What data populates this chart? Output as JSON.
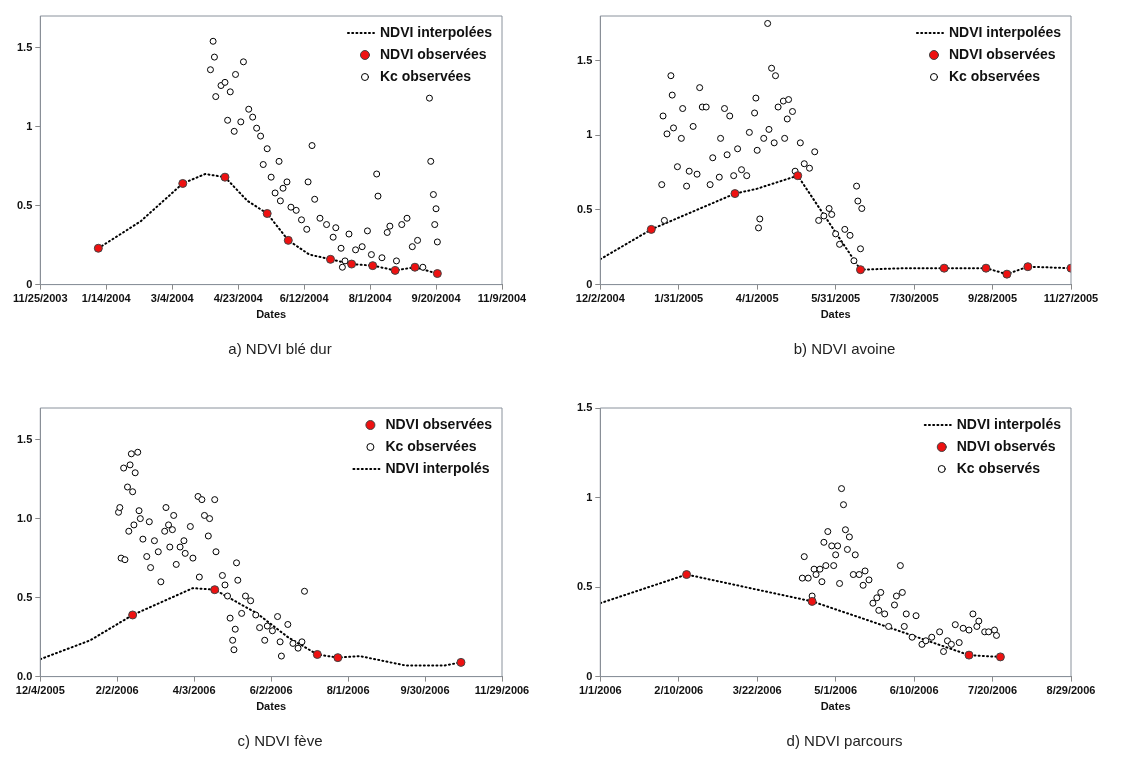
{
  "chart_data": [
    {
      "type": "scatter",
      "title": "a) NDVI blé dur",
      "xlabel": "Dates",
      "legend": "top right",
      "grid": false,
      "xlim": [
        "2003-11-25",
        "2004-11-09"
      ],
      "xticks": [
        {
          "value": "2003-11-25",
          "label": "11/25/2003"
        },
        {
          "value": "2004-01-14",
          "label": "1/14/2004"
        },
        {
          "value": "2004-03-04",
          "label": "3/4/2004"
        },
        {
          "value": "2004-04-23",
          "label": "4/23/2004"
        },
        {
          "value": "2004-06-12",
          "label": "6/12/2004"
        },
        {
          "value": "2004-08-01",
          "label": "8/1/2004"
        },
        {
          "value": "2004-09-20",
          "label": "9/20/2004"
        },
        {
          "value": "2004-11-09",
          "label": "11/9/2004"
        }
      ],
      "ylim": [
        0,
        1.7
      ],
      "yticks": [
        0,
        0.5,
        1,
        1.5
      ],
      "series": [
        {
          "name": "NDVI interpolées",
          "type": "line",
          "color": "#000000",
          "marker": "none",
          "line_style": "dotted",
          "x": [
            "2004-01-08",
            "2004-02-09",
            "2004-03-12",
            "2004-03-29",
            "2004-04-13",
            "2004-04-30",
            "2004-05-15",
            "2004-05-31",
            "2004-06-16",
            "2004-07-02",
            "2004-07-18",
            "2004-08-03",
            "2004-08-20",
            "2004-09-04",
            "2004-09-21"
          ],
          "values": [
            0.23,
            0.4,
            0.64,
            0.7,
            0.68,
            0.53,
            0.45,
            0.28,
            0.19,
            0.16,
            0.13,
            0.12,
            0.09,
            0.11,
            0.07
          ]
        },
        {
          "name": "NDVI observées",
          "type": "scatter",
          "color": "#ee1111",
          "marker": "circle",
          "x": [
            "2004-01-08",
            "2004-03-12",
            "2004-04-13",
            "2004-05-15",
            "2004-05-31",
            "2004-07-02",
            "2004-07-18",
            "2004-08-03",
            "2004-08-20",
            "2004-09-04",
            "2004-09-21"
          ],
          "values": [
            0.23,
            0.64,
            0.68,
            0.45,
            0.28,
            0.16,
            0.13,
            0.12,
            0.09,
            0.11,
            0.07
          ]
        },
        {
          "name": "Kc observées",
          "type": "scatter",
          "color": "#000000",
          "marker": "circle",
          "x": [
            "2004-04-02",
            "2004-04-04",
            "2004-04-05",
            "2004-04-06",
            "2004-04-10",
            "2004-04-13",
            "2004-04-15",
            "2004-04-17",
            "2004-04-20",
            "2004-04-21",
            "2004-04-25",
            "2004-04-27",
            "2004-05-01",
            "2004-05-04",
            "2004-05-07",
            "2004-05-10",
            "2004-05-12",
            "2004-05-15",
            "2004-05-18",
            "2004-05-21",
            "2004-05-24",
            "2004-05-27",
            "2004-05-30",
            "2004-06-02",
            "2004-06-06",
            "2004-06-10",
            "2004-06-14",
            "2004-06-15",
            "2004-06-18",
            "2004-06-20",
            "2004-06-24",
            "2004-06-29",
            "2004-07-04",
            "2004-07-10",
            "2004-07-11",
            "2004-07-16",
            "2004-07-21",
            "2004-07-26",
            "2004-07-30",
            "2004-08-02",
            "2004-08-06",
            "2004-08-07",
            "2004-08-10",
            "2004-08-14",
            "2004-08-16",
            "2004-08-21",
            "2004-08-25",
            "2004-08-29",
            "2004-09-02",
            "2004-09-06",
            "2004-09-10",
            "2004-09-15",
            "2004-09-16",
            "2004-09-18",
            "2004-09-19",
            "2004-09-20",
            "2004-09-21",
            "2004-05-25",
            "2004-07-06",
            "2004-07-13"
          ],
          "values": [
            1.36,
            1.54,
            1.44,
            1.19,
            1.26,
            1.28,
            1.04,
            1.22,
            0.97,
            1.33,
            1.03,
            1.41,
            1.11,
            1.06,
            0.99,
            0.94,
            0.76,
            0.86,
            0.68,
            0.58,
            0.78,
            0.61,
            0.65,
            0.49,
            0.47,
            0.41,
            0.35,
            0.65,
            0.88,
            0.54,
            0.42,
            0.38,
            0.3,
            0.23,
            0.11,
            0.32,
            0.22,
            0.24,
            0.34,
            0.19,
            0.7,
            0.56,
            0.17,
            0.33,
            0.37,
            0.15,
            0.38,
            0.42,
            0.24,
            0.28,
            0.11,
            1.18,
            0.78,
            0.57,
            0.38,
            0.48,
            0.27,
            0.53,
            0.36,
            0.15
          ]
        }
      ]
    },
    {
      "type": "scatter",
      "title": "b) NDVI avoine",
      "xlabel": "Dates",
      "legend": "top right",
      "grid": false,
      "xlim": [
        "2004-12-02",
        "2005-11-27"
      ],
      "xticks": [
        {
          "value": "2004-12-02",
          "label": "12/2/2004"
        },
        {
          "value": "2005-01-31",
          "label": "1/31/2005"
        },
        {
          "value": "2005-04-01",
          "label": "4/1/2005"
        },
        {
          "value": "2005-05-31",
          "label": "5/31/2005"
        },
        {
          "value": "2005-07-30",
          "label": "7/30/2005"
        },
        {
          "value": "2005-09-28",
          "label": "9/28/2005"
        },
        {
          "value": "2005-11-27",
          "label": "11/27/2005"
        }
      ],
      "ylim": [
        0,
        1.8
      ],
      "yticks": [
        0,
        0.5,
        1,
        1.5
      ],
      "series": [
        {
          "name": "NDVI interpolées",
          "type": "line",
          "color": "#000000",
          "marker": "none",
          "line_style": "dotted",
          "x": [
            "2004-12-02",
            "2005-01-10",
            "2005-03-15",
            "2005-03-31",
            "2005-05-02",
            "2005-06-19",
            "2005-07-23",
            "2005-08-22",
            "2005-09-23",
            "2005-10-09",
            "2005-10-25",
            "2005-11-27"
          ],
          "values": [
            0.17,
            0.37,
            0.61,
            0.64,
            0.73,
            0.1,
            0.11,
            0.11,
            0.11,
            0.07,
            0.12,
            0.11
          ]
        },
        {
          "name": "NDVI observées",
          "type": "scatter",
          "color": "#ee1111",
          "marker": "circle",
          "x": [
            "2005-01-10",
            "2005-03-15",
            "2005-05-02",
            "2005-06-19",
            "2005-08-22",
            "2005-09-23",
            "2005-10-09",
            "2005-10-25",
            "2005-11-27"
          ],
          "values": [
            0.37,
            0.61,
            0.73,
            0.1,
            0.11,
            0.11,
            0.07,
            0.12,
            0.11
          ]
        },
        {
          "name": "Kc observées",
          "type": "scatter",
          "color": "#000000",
          "marker": "circle",
          "x": [
            "2005-01-18",
            "2005-01-19",
            "2005-01-20",
            "2005-01-22",
            "2005-01-25",
            "2005-01-26",
            "2005-01-27",
            "2005-01-30",
            "2005-02-02",
            "2005-02-03",
            "2005-02-06",
            "2005-02-08",
            "2005-02-11",
            "2005-02-14",
            "2005-02-16",
            "2005-02-18",
            "2005-02-21",
            "2005-02-24",
            "2005-02-26",
            "2005-03-03",
            "2005-03-04",
            "2005-03-07",
            "2005-03-09",
            "2005-03-11",
            "2005-03-14",
            "2005-03-17",
            "2005-03-20",
            "2005-03-24",
            "2005-03-26",
            "2005-03-30",
            "2005-03-31",
            "2005-04-01",
            "2005-04-02",
            "2005-04-03",
            "2005-04-06",
            "2005-04-09",
            "2005-04-10",
            "2005-04-12",
            "2005-04-14",
            "2005-04-15",
            "2005-04-17",
            "2005-04-21",
            "2005-04-22",
            "2005-04-24",
            "2005-04-25",
            "2005-04-28",
            "2005-04-30",
            "2005-05-04",
            "2005-05-07",
            "2005-05-11",
            "2005-05-15",
            "2005-05-18",
            "2005-05-22",
            "2005-05-26",
            "2005-05-31",
            "2005-06-03",
            "2005-06-07",
            "2005-06-11",
            "2005-06-14",
            "2005-06-16",
            "2005-06-17",
            "2005-06-20",
            "2005-06-19",
            "2005-05-28"
          ],
          "values": [
            0.67,
            1.13,
            0.43,
            1.01,
            1.4,
            1.27,
            1.05,
            0.79,
            0.98,
            1.18,
            0.66,
            0.76,
            1.06,
            0.74,
            1.32,
            1.19,
            1.19,
            0.67,
            0.85,
            0.72,
            0.98,
            1.18,
            0.87,
            1.13,
            0.73,
            0.91,
            0.77,
            0.73,
            1.02,
            1.15,
            1.25,
            0.9,
            0.38,
            0.44,
            0.98,
            1.75,
            1.04,
            1.45,
            0.95,
            1.4,
            1.19,
            1.23,
            0.98,
            1.11,
            1.24,
            1.16,
            0.76,
            0.95,
            0.81,
            0.78,
            0.89,
            0.43,
            0.46,
            0.51,
            0.34,
            0.27,
            0.37,
            0.33,
            0.16,
            0.66,
            0.56,
            0.51,
            0.24,
            0.47
          ]
        }
      ]
    },
    {
      "type": "scatter",
      "title": "c) NDVI fève",
      "xlabel": "Dates",
      "legend": "top right",
      "grid": false,
      "xlim": [
        "2005-12-04",
        "2006-11-29"
      ],
      "xticks": [
        {
          "value": "2005-12-04",
          "label": "12/4/2005"
        },
        {
          "value": "2006-02-02",
          "label": "2/2/2006"
        },
        {
          "value": "2006-04-03",
          "label": "4/3/2006"
        },
        {
          "value": "2006-06-02",
          "label": "6/2/2006"
        },
        {
          "value": "2006-08-01",
          "label": "8/1/2006"
        },
        {
          "value": "2006-09-30",
          "label": "9/30/2006"
        },
        {
          "value": "2006-11-29",
          "label": "11/29/2006"
        }
      ],
      "ylim": [
        0,
        1.7
      ],
      "yticks": [
        {
          "value": 0,
          "label": "0.0"
        },
        {
          "value": 0.5,
          "label": "0.5"
        },
        {
          "value": 1,
          "label": "1.0"
        },
        {
          "value": 1.5,
          "label": "1.5"
        }
      ],
      "series": [
        {
          "name": "NDVI observées",
          "type": "scatter",
          "color": "#ee1111",
          "marker": "circle",
          "x": [
            "2006-02-14",
            "2006-04-19",
            "2006-07-08",
            "2006-07-24",
            "2006-10-28"
          ],
          "values": [
            0.39,
            0.55,
            0.14,
            0.12,
            0.09
          ]
        },
        {
          "name": "Kc observées",
          "type": "scatter",
          "color": "#000000",
          "marker": "circle",
          "x": [
            "2006-02-03",
            "2006-02-04",
            "2006-02-05",
            "2006-02-08",
            "2006-02-07",
            "2006-02-10",
            "2006-02-12",
            "2006-02-11",
            "2006-02-13",
            "2006-02-14",
            "2006-02-15",
            "2006-02-16",
            "2006-02-18",
            "2006-02-19",
            "2006-02-20",
            "2006-02-22",
            "2006-02-25",
            "2006-02-27",
            "2006-02-28",
            "2006-03-03",
            "2006-03-06",
            "2006-03-08",
            "2006-03-11",
            "2006-03-12",
            "2006-03-14",
            "2006-03-15",
            "2006-03-17",
            "2006-03-18",
            "2006-03-20",
            "2006-03-23",
            "2006-03-26",
            "2006-03-27",
            "2006-03-31",
            "2006-04-02",
            "2006-04-06",
            "2006-04-07",
            "2006-04-09",
            "2006-04-11",
            "2006-04-14",
            "2006-04-15",
            "2006-04-19",
            "2006-04-20",
            "2006-04-25",
            "2006-04-27",
            "2006-04-29",
            "2006-05-01",
            "2006-05-03",
            "2006-05-04",
            "2006-05-05",
            "2006-05-06",
            "2006-05-07",
            "2006-05-10",
            "2006-05-13",
            "2006-05-17",
            "2006-05-21",
            "2006-05-24",
            "2006-05-28",
            "2006-05-30",
            "2006-06-03",
            "2006-06-07",
            "2006-06-09",
            "2006-06-10",
            "2006-06-15",
            "2006-06-19",
            "2006-06-23",
            "2006-06-26",
            "2006-06-28"
          ],
          "values": [
            1.04,
            1.07,
            0.75,
            0.74,
            1.32,
            1.2,
            1.34,
            0.92,
            1.41,
            1.17,
            0.96,
            1.29,
            1.42,
            1.05,
            1.0,
            0.87,
            0.76,
            0.98,
            0.69,
            0.86,
            0.79,
            0.6,
            0.92,
            1.07,
            0.96,
            0.82,
            0.93,
            1.02,
            0.71,
            0.82,
            0.86,
            0.78,
            0.95,
            0.75,
            1.14,
            0.63,
            1.12,
            1.02,
            0.89,
            1.0,
            1.12,
            0.79,
            0.64,
            0.58,
            0.51,
            0.37,
            0.23,
            0.17,
            0.3,
            0.72,
            0.61,
            0.4,
            0.51,
            0.48,
            0.39,
            0.31,
            0.23,
            0.32,
            0.29,
            0.38,
            0.22,
            0.13,
            0.33,
            0.21,
            0.18,
            0.22,
            0.54
          ]
        },
        {
          "name": "NDVI interpolés",
          "type": "line",
          "color": "#000000",
          "marker": "none",
          "line_style": "dotted",
          "x": [
            "2005-12-04",
            "2006-01-12",
            "2006-02-14",
            "2006-04-02",
            "2006-04-19",
            "2006-05-22",
            "2006-06-15",
            "2006-07-08",
            "2006-07-24",
            "2006-08-10",
            "2006-09-15",
            "2006-10-15",
            "2006-10-28"
          ],
          "values": [
            0.11,
            0.23,
            0.39,
            0.56,
            0.55,
            0.4,
            0.25,
            0.14,
            0.12,
            0.13,
            0.07,
            0.07,
            0.09
          ]
        }
      ]
    },
    {
      "type": "scatter",
      "title": "d) NDVI parcours",
      "xlabel": "Dates",
      "legend": "top right",
      "grid": false,
      "xlim": [
        "2006-01-01",
        "2006-08-29"
      ],
      "xticks": [
        {
          "value": "2006-01-01",
          "label": "1/1/2006"
        },
        {
          "value": "2006-02-10",
          "label": "2/10/2006"
        },
        {
          "value": "2006-03-22",
          "label": "3/22/2006"
        },
        {
          "value": "2006-05-01",
          "label": "5/1/2006"
        },
        {
          "value": "2006-06-10",
          "label": "6/10/2006"
        },
        {
          "value": "2006-07-20",
          "label": "7/20/2006"
        },
        {
          "value": "2006-08-29",
          "label": "8/29/2006"
        }
      ],
      "ylim": [
        0,
        1.5
      ],
      "yticks": [
        0,
        0.5,
        1,
        1.5
      ],
      "series": [
        {
          "name": "NDVI interpolés",
          "type": "line",
          "color": "#000000",
          "marker": "none",
          "line_style": "dotted",
          "x": [
            "2006-01-01",
            "2006-02-14",
            "2006-04-19",
            "2006-05-16",
            "2006-06-09",
            "2006-07-08",
            "2006-07-24"
          ],
          "values": [
            0.41,
            0.57,
            0.42,
            0.32,
            0.23,
            0.12,
            0.11
          ]
        },
        {
          "name": "NDVI observés",
          "type": "scatter",
          "color": "#ee1111",
          "marker": "circle",
          "x": [
            "2006-02-14",
            "2006-04-19",
            "2006-07-08",
            "2006-07-24"
          ],
          "values": [
            0.57,
            0.42,
            0.12,
            0.11
          ]
        },
        {
          "name": "Kc observés",
          "type": "scatter",
          "color": "#000000",
          "marker": "circle",
          "x": [
            "2006-04-14",
            "2006-04-15",
            "2006-04-17",
            "2006-04-19",
            "2006-04-20",
            "2006-04-21",
            "2006-04-23",
            "2006-04-24",
            "2006-04-25",
            "2006-04-26",
            "2006-04-27",
            "2006-04-29",
            "2006-04-30",
            "2006-05-01",
            "2006-05-02",
            "2006-05-03",
            "2006-05-04",
            "2006-05-05",
            "2006-05-06",
            "2006-05-07",
            "2006-05-08",
            "2006-05-10",
            "2006-05-11",
            "2006-05-13",
            "2006-05-15",
            "2006-05-16",
            "2006-05-18",
            "2006-05-20",
            "2006-05-22",
            "2006-05-23",
            "2006-05-24",
            "2006-05-26",
            "2006-05-28",
            "2006-05-31",
            "2006-06-01",
            "2006-06-03",
            "2006-06-04",
            "2006-06-05",
            "2006-06-06",
            "2006-06-09",
            "2006-06-11",
            "2006-06-14",
            "2006-06-16",
            "2006-06-19",
            "2006-06-23",
            "2006-06-25",
            "2006-06-27",
            "2006-06-29",
            "2006-07-01",
            "2006-07-03",
            "2006-07-05",
            "2006-07-08",
            "2006-07-10",
            "2006-07-12",
            "2006-07-13",
            "2006-07-16",
            "2006-07-18",
            "2006-07-21",
            "2006-07-22"
          ],
          "values": [
            0.55,
            0.67,
            0.55,
            0.45,
            0.6,
            0.57,
            0.6,
            0.53,
            0.75,
            0.62,
            0.81,
            0.73,
            0.62,
            0.68,
            0.73,
            0.52,
            1.05,
            0.96,
            0.82,
            0.71,
            0.78,
            0.57,
            0.68,
            0.57,
            0.51,
            0.59,
            0.54,
            0.41,
            0.44,
            0.37,
            0.47,
            0.35,
            0.28,
            0.4,
            0.45,
            0.62,
            0.47,
            0.28,
            0.35,
            0.22,
            0.34,
            0.18,
            0.2,
            0.22,
            0.25,
            0.14,
            0.2,
            0.18,
            0.29,
            0.19,
            0.27,
            0.26,
            0.35,
            0.28,
            0.31,
            0.25,
            0.25,
            0.26,
            0.23
          ]
        }
      ]
    }
  ]
}
